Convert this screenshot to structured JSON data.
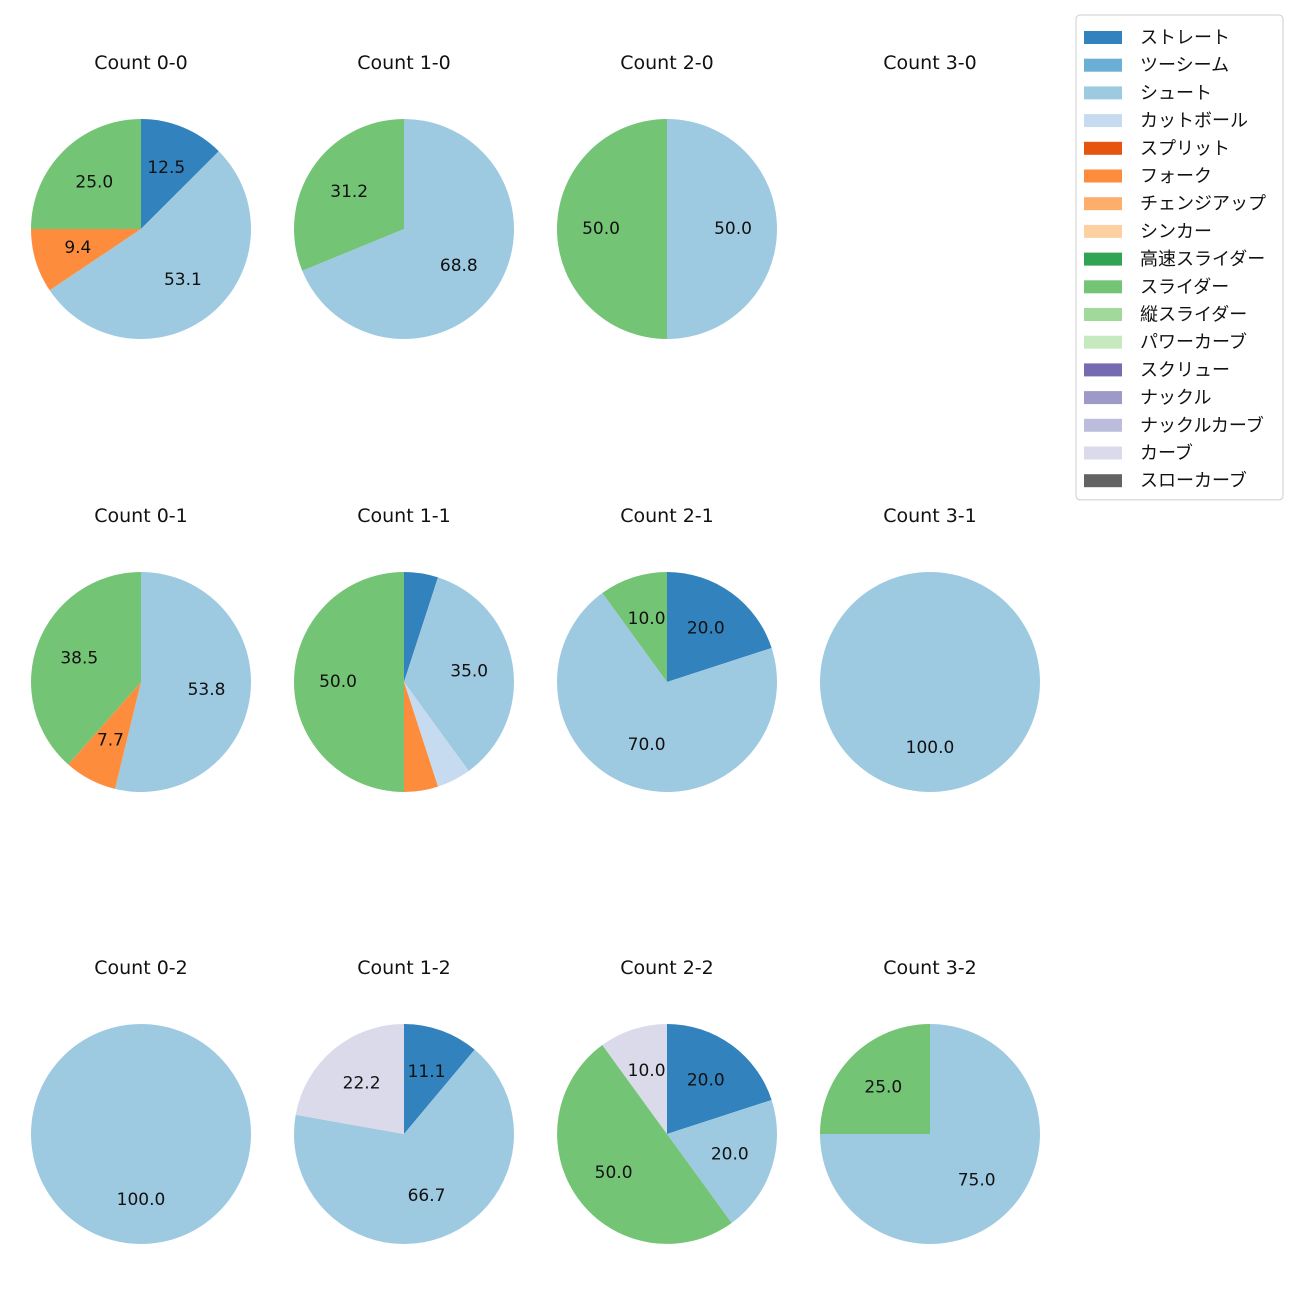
{
  "chart_data": {
    "type": "pie",
    "categories": [
      "ストレート",
      "ツーシーム",
      "シュート",
      "カットボール",
      "スプリット",
      "フォーク",
      "チェンジアップ",
      "シンカー",
      "高速スライダー",
      "スライダー",
      "縦スライダー",
      "パワーカーブ",
      "スクリュー",
      "ナックル",
      "ナックルカーブ",
      "カーブ",
      "スローカーブ"
    ],
    "colors": [
      "#3182bd",
      "#6baed6",
      "#9ecae1",
      "#c6dbef",
      "#e6550d",
      "#fd8d3c",
      "#fdae6b",
      "#fdd0a2",
      "#31a354",
      "#74c476",
      "#a1d99b",
      "#c7e9c0",
      "#756bb1",
      "#9e9ac8",
      "#bcbddc",
      "#dadaeb",
      "#636363"
    ],
    "label_threshold": 5,
    "pies": [
      {
        "title": "Count 0-0",
        "values": {
          "ストレート": 12.5,
          "シュート": 53.1,
          "フォーク": 9.4,
          "スライダー": 25.0
        }
      },
      {
        "title": "Count 1-0",
        "values": {
          "シュート": 68.8,
          "スライダー": 31.2
        }
      },
      {
        "title": "Count 2-0",
        "values": {
          "シュート": 50.0,
          "スライダー": 50.0
        }
      },
      {
        "title": "Count 3-0",
        "values": {}
      },
      {
        "title": "Count 0-1",
        "values": {
          "シュート": 53.8,
          "フォーク": 7.7,
          "スライダー": 38.5
        }
      },
      {
        "title": "Count 1-1",
        "values": {
          "ストレート": 5.0,
          "シュート": 35.0,
          "カットボール": 5.0,
          "フォーク": 5.0,
          "スライダー": 50.0
        }
      },
      {
        "title": "Count 2-1",
        "values": {
          "ストレート": 20.0,
          "シュート": 70.0,
          "スライダー": 10.0
        }
      },
      {
        "title": "Count 3-1",
        "values": {
          "シュート": 100.0
        }
      },
      {
        "title": "Count 0-2",
        "values": {
          "シュート": 100.0
        }
      },
      {
        "title": "Count 1-2",
        "values": {
          "ストレート": 11.1,
          "シュート": 66.7,
          "カーブ": 22.2
        }
      },
      {
        "title": "Count 2-2",
        "values": {
          "ストレート": 20.0,
          "シュート": 20.0,
          "スライダー": 50.0,
          "カーブ": 10.0
        }
      },
      {
        "title": "Count 3-2",
        "values": {
          "シュート": 75.0,
          "スライダー": 25.0
        }
      }
    ],
    "legend_position": "upper-right"
  }
}
